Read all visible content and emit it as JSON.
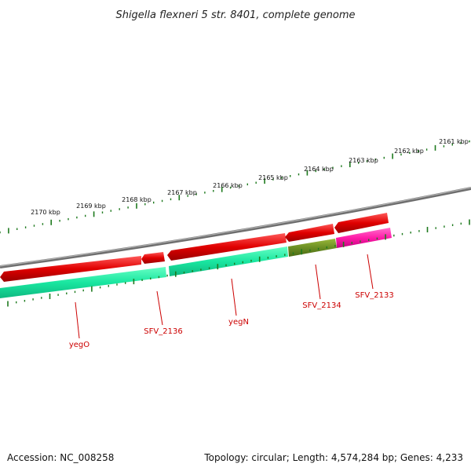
{
  "title": "Shigella flexneri 5 str. 8401, complete genome",
  "accession": "Accession: NC_008258",
  "summary": "Topology: circular; Length: 4,574,284 bp; Genes: 4,233",
  "ticks": [
    "2161 kbp",
    "2162 kbp",
    "2163 kbp",
    "2164 kbp",
    "2165 kbp",
    "2166 kbp",
    "2167 kbp",
    "2168 kbp",
    "2169 kbp",
    "2170 kbp"
  ],
  "gene_labels": [
    "yegO",
    "SFV_2136",
    "yegN",
    "SFV_2134",
    "SFV_2133"
  ],
  "colors": {
    "backbone": "#808080",
    "cds": "#e00000",
    "gene": "#19e6a0",
    "gene_olive": "#6b8e23",
    "gene_pink": "#ff1ca8",
    "tick": "#1e7a1e",
    "label": "#cc0000"
  }
}
